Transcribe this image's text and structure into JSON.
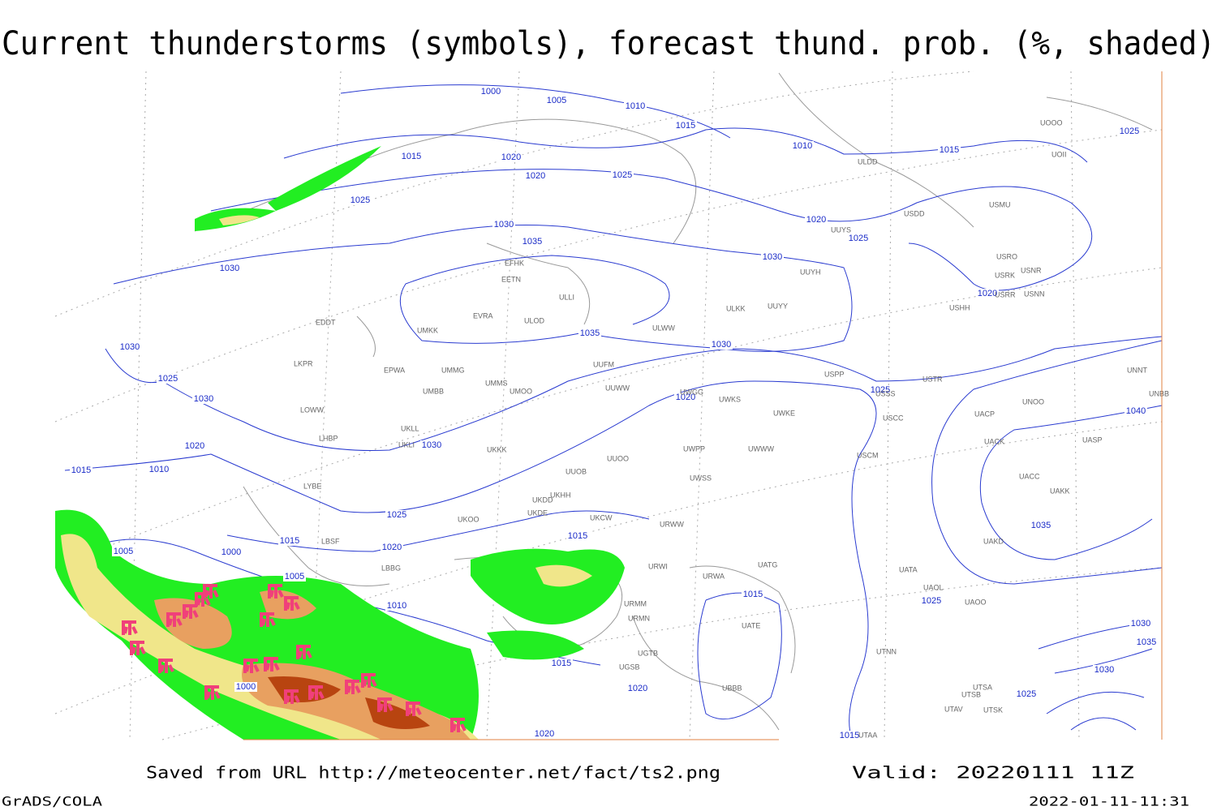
{
  "title": "Current thunderstorms (symbols), forecast thund. prob. (%, shaded)",
  "isobar_labels": [
    1000,
    1005,
    1010,
    1015,
    1010,
    1015,
    1025,
    1015,
    1020,
    1020,
    1025,
    1025,
    1030,
    1035,
    1020,
    1025,
    1030,
    1030,
    1020,
    1035,
    1030,
    1030,
    1025,
    1030,
    1020,
    1025,
    1040,
    1030,
    1020,
    1015,
    1010,
    1025,
    1035,
    1015,
    1020,
    1015,
    1005,
    1000,
    1005,
    1010,
    1015,
    1025,
    1030,
    1035,
    1015,
    1030,
    1000,
    1020,
    1025,
    1020,
    1015
  ],
  "stations": [
    "EFHK",
    "EETN",
    "EVRA",
    "ULOD",
    "UMKK",
    "EDDT",
    "EPWA",
    "UMMG",
    "LKPR",
    "UMMS",
    "UMOO",
    "UMBB",
    "LOWW",
    "UKLL",
    "UKLI",
    "LHBP",
    "UKKK",
    "LYBE",
    "UKHH",
    "UKDD",
    "UKDE",
    "UKOO",
    "LBSF",
    "LBBG",
    "ULLI",
    "ULWW",
    "ULKK",
    "UUYY",
    "UUFM",
    "UUWW",
    "UWGG",
    "UWKS",
    "UWKE",
    "UWWW",
    "UWPP",
    "UWSS",
    "UUOO",
    "UUOB",
    "UKCW",
    "URWW",
    "URWI",
    "URMM",
    "URMN",
    "UGTB",
    "UGSB",
    "UBBB",
    "UATE",
    "UATG",
    "URWA",
    "UUYS",
    "UUYH",
    "USPP",
    "USCC",
    "USCM",
    "UACC",
    "UACK",
    "UAKD",
    "UATA",
    "UAOL",
    "UAOO",
    "USTR",
    "USSS",
    "USRR",
    "USNN",
    "USHH",
    "USRO",
    "USRK",
    "USNR",
    "USMU",
    "USDD",
    "ULDD",
    "UOOO",
    "UOII",
    "UNNT",
    "UNBB",
    "UASP",
    "UAKK",
    "UNOO",
    "UACP",
    "UTNN",
    "UTSA",
    "UTSB",
    "UTAV",
    "UTSK",
    "UTAA"
  ],
  "footer": {
    "source": "Saved from URL http://meteocenter.net/fact/ts2.png",
    "valid": "Valid: 20220111 11Z",
    "software": "GrADS/COLA",
    "timestamp": "2022-01-11-11:31"
  }
}
